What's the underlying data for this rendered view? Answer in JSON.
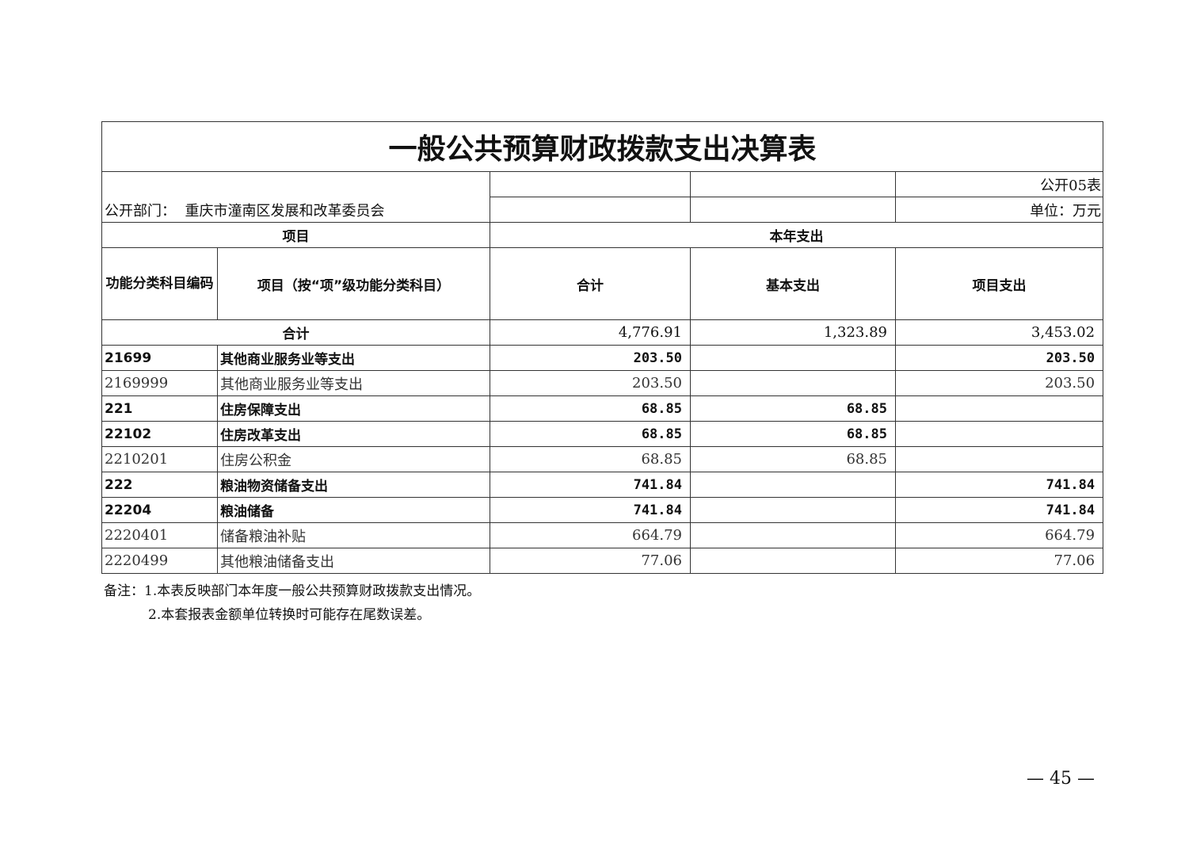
{
  "title": "一般公共预算财政拨款支出决算表",
  "table_no": "公开05表",
  "department_label": "公开部门：",
  "department": "重庆市潼南区发展和改革委员会",
  "unit": "单位：万元",
  "headers": {
    "project": "项目",
    "this_year": "本年支出",
    "code": "功能分类科目编码",
    "item": "项目（按“项”级功能分类科目）",
    "total": "合计",
    "basic": "基本支出",
    "project_exp": "项目支出"
  },
  "total_row": {
    "label": "合计",
    "total": "4,776.91",
    "basic": "1,323.89",
    "project": "3,453.02"
  },
  "rows": [
    {
      "code": "21699",
      "name": "其他商业服务业等支出",
      "total": "203.50",
      "basic": "",
      "project": "203.50",
      "bold": true
    },
    {
      "code": "2169999",
      "name": "其他商业服务业等支出",
      "total": "203.50",
      "basic": "",
      "project": "203.50",
      "bold": false
    },
    {
      "code": "221",
      "name": "住房保障支出",
      "total": "68.85",
      "basic": "68.85",
      "project": "",
      "bold": true
    },
    {
      "code": "22102",
      "name": "住房改革支出",
      "total": "68.85",
      "basic": "68.85",
      "project": "",
      "bold": true
    },
    {
      "code": "2210201",
      "name": "住房公积金",
      "total": "68.85",
      "basic": "68.85",
      "project": "",
      "bold": false
    },
    {
      "code": "222",
      "name": "粮油物资储备支出",
      "total": "741.84",
      "basic": "",
      "project": "741.84",
      "bold": true
    },
    {
      "code": "22204",
      "name": "粮油储备",
      "total": "741.84",
      "basic": "",
      "project": "741.84",
      "bold": true
    },
    {
      "code": "2220401",
      "name": "储备粮油补贴",
      "total": "664.79",
      "basic": "",
      "project": "664.79",
      "bold": false
    },
    {
      "code": "2220499",
      "name": "其他粮油储备支出",
      "total": "77.06",
      "basic": "",
      "project": "77.06",
      "bold": false
    }
  ],
  "notes": [
    "备注：1.本表反映部门本年度一般公共预算财政拨款支出情况。",
    "2.本套报表金额单位转换时可能存在尾数误差。"
  ],
  "page_number": "— 45 —"
}
